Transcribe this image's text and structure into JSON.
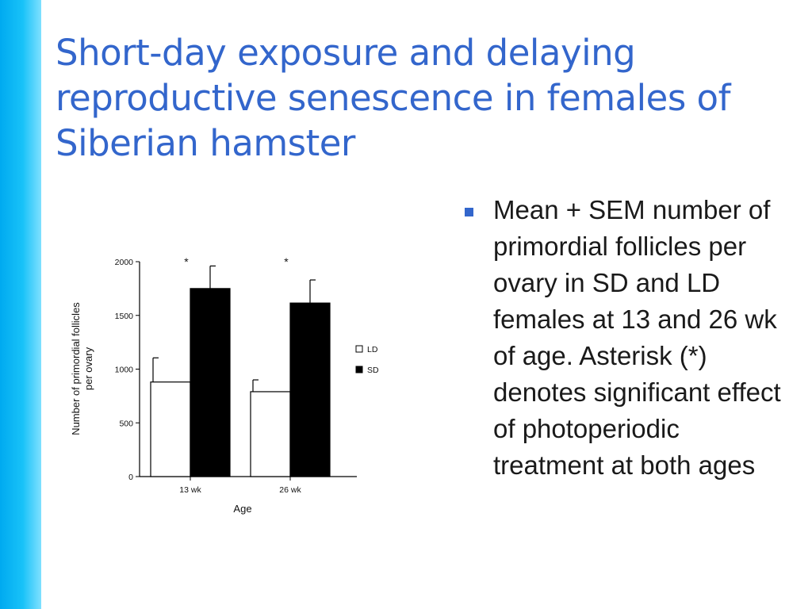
{
  "slide": {
    "title": "Short-day exposure and delaying reproductive senescence in females of Siberian hamster",
    "bullet": "Mean + SEM number of primordial follicles per ovary in SD and LD females at 13 and 26 wk of age. Asterisk (*) denotes significant effect of photoperiodic treatment at both ages"
  },
  "chart_data": {
    "type": "bar",
    "categories": [
      "13 wk",
      "26 wk"
    ],
    "series": [
      {
        "name": "LD",
        "values": [
          880,
          790
        ],
        "errors": [
          225,
          110
        ],
        "color": "#ffffff"
      },
      {
        "name": "SD",
        "values": [
          1750,
          1615
        ],
        "errors": [
          210,
          215
        ],
        "color": "#000000"
      }
    ],
    "significance": [
      "*",
      "*"
    ],
    "xlabel": "Age",
    "ylabel_lines": [
      "Number of primordial follicles",
      "per ovary"
    ],
    "ylim": [
      0,
      2000
    ],
    "yticks": [
      0,
      500,
      1000,
      1500,
      2000
    ],
    "legend_position": "right",
    "grid": false
  }
}
